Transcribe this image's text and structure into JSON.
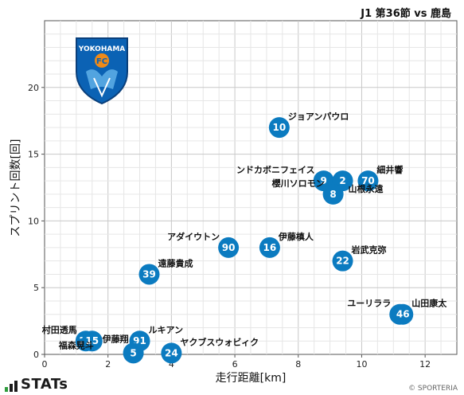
{
  "header": {
    "match_title": "J1 第36節 vs 鹿島"
  },
  "team_crest": {
    "name": "YOKOHAMA",
    "letters": "FC",
    "colors": {
      "primary": "#0b62b4",
      "accent": "#f08a18"
    }
  },
  "brand": {
    "text": "STATs"
  },
  "copyright": "© SPORTERIA",
  "chart_data": {
    "type": "scatter",
    "xlabel": "走行距離[km]",
    "ylabel": "スプリント回数[回]",
    "xlim": [
      0,
      13
    ],
    "ylim": [
      0,
      25
    ],
    "x_ticks": [
      0,
      2,
      4,
      6,
      8,
      10,
      12
    ],
    "y_ticks": [
      0,
      5,
      10,
      15,
      20
    ],
    "grid": true,
    "point_color": "#0b7bc0",
    "points": [
      {
        "number": "10",
        "name": "ジョアンパウロ",
        "x": 7.4,
        "y": 17,
        "label_pos": "right-up"
      },
      {
        "number": "9",
        "name": "ンドカボニフェイス",
        "x": 8.8,
        "y": 13,
        "label_pos": "left-up"
      },
      {
        "number": "2",
        "name": "",
        "x": 9.4,
        "y": 13,
        "label_pos": "none"
      },
      {
        "number": "70",
        "name": "細井響",
        "x": 10.2,
        "y": 13,
        "label_pos": "right-up"
      },
      {
        "number": "8",
        "name": "櫻川ソロモン",
        "x": 9.1,
        "y": 12,
        "label_pos": "left-up"
      },
      {
        "number": "",
        "name": "山根永遠",
        "x": 9.7,
        "y": 12.4,
        "label_pos": "right"
      },
      {
        "number": "90",
        "name": "アダイウトン",
        "x": 5.8,
        "y": 8,
        "label_pos": "left-up"
      },
      {
        "number": "16",
        "name": "伊藤槙人",
        "x": 7.1,
        "y": 8,
        "label_pos": "right-up"
      },
      {
        "number": "22",
        "name": "岩武克弥",
        "x": 9.4,
        "y": 7,
        "label_pos": "right-up"
      },
      {
        "number": "39",
        "name": "遠藤貴成",
        "x": 3.3,
        "y": 6,
        "label_pos": "right-up"
      },
      {
        "number": "7",
        "name": "ユーリララ",
        "x": 11.2,
        "y": 3,
        "label_pos": "left-up"
      },
      {
        "number": "46",
        "name": "山田康太",
        "x": 11.3,
        "y": 3,
        "label_pos": "right-up"
      },
      {
        "number": "20",
        "name": "村田透馬",
        "x": 1.3,
        "y": 1,
        "label_pos": "left-up"
      },
      {
        "number": "15",
        "name": "",
        "x": 1.5,
        "y": 1,
        "label_pos": "none"
      },
      {
        "number": "91",
        "name": "ルキアン",
        "x": 3.0,
        "y": 1,
        "label_pos": "right-up"
      },
      {
        "number": "",
        "name": "伊藤翔",
        "x": 2.4,
        "y": 0.8,
        "label_pos": "left-dn"
      },
      {
        "number": "",
        "name": "福森晃斗",
        "x": 1.3,
        "y": 0.4,
        "label_pos": "left-dn2"
      },
      {
        "number": "5",
        "name": "",
        "x": 2.8,
        "y": 0.1,
        "label_pos": "none"
      },
      {
        "number": "24",
        "name": "ヤクブスウォビィク",
        "x": 4.0,
        "y": 0.1,
        "label_pos": "right-up"
      }
    ]
  }
}
